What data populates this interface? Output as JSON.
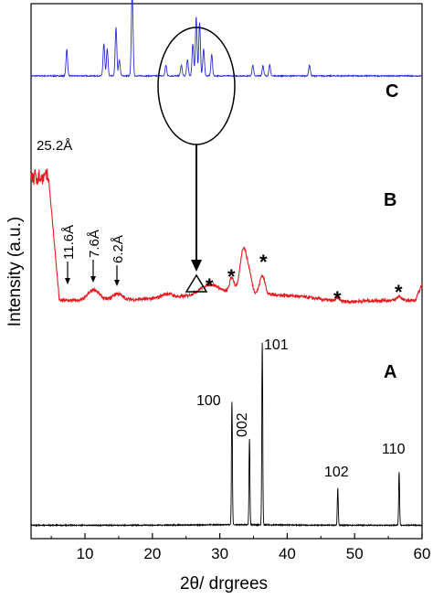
{
  "chart_data": {
    "type": "line",
    "xlabel": "2θ/ drgrees",
    "ylabel": "Intensity (a.u.)",
    "xlim": [
      2,
      60
    ],
    "xticks": [
      10,
      20,
      30,
      40,
      50,
      60
    ],
    "y_ticks_shown": false,
    "series": [
      {
        "name": "C",
        "color": "#2b2bd6",
        "baseline_offset": 0.865,
        "peaks": [
          {
            "x": 7.3,
            "h": 0.05
          },
          {
            "x": 12.8,
            "h": 0.06
          },
          {
            "x": 13.3,
            "h": 0.05
          },
          {
            "x": 14.6,
            "h": 0.09
          },
          {
            "x": 15.1,
            "h": 0.03
          },
          {
            "x": 17.0,
            "h": 0.16
          },
          {
            "x": 22.0,
            "h": 0.02
          },
          {
            "x": 24.3,
            "h": 0.02
          },
          {
            "x": 25.2,
            "h": 0.03
          },
          {
            "x": 26.0,
            "h": 0.06
          },
          {
            "x": 26.5,
            "h": 0.11
          },
          {
            "x": 27.0,
            "h": 0.1
          },
          {
            "x": 27.6,
            "h": 0.05
          },
          {
            "x": 28.8,
            "h": 0.04
          },
          {
            "x": 34.9,
            "h": 0.02
          },
          {
            "x": 36.4,
            "h": 0.02
          },
          {
            "x": 37.4,
            "h": 0.02
          },
          {
            "x": 43.3,
            "h": 0.02
          }
        ],
        "letter": "C"
      },
      {
        "name": "B",
        "color": "#e8191e",
        "letter": "B",
        "annotations": {
          "d_25": "25.2Å",
          "d_116": "11.6Å",
          "d_76": "7.6Å",
          "d_62": "6.2Å",
          "star": "*"
        }
      },
      {
        "name": "A",
        "color": "#000000",
        "letter": "A",
        "peaks": [
          {
            "x": 31.8,
            "h": 0.23,
            "label": "100"
          },
          {
            "x": 34.4,
            "h": 0.16,
            "label": "002"
          },
          {
            "x": 36.3,
            "h": 0.34,
            "label": "101"
          },
          {
            "x": 47.5,
            "h": 0.07,
            "label": "102"
          },
          {
            "x": 56.6,
            "h": 0.1,
            "label": "110"
          }
        ]
      }
    ]
  }
}
